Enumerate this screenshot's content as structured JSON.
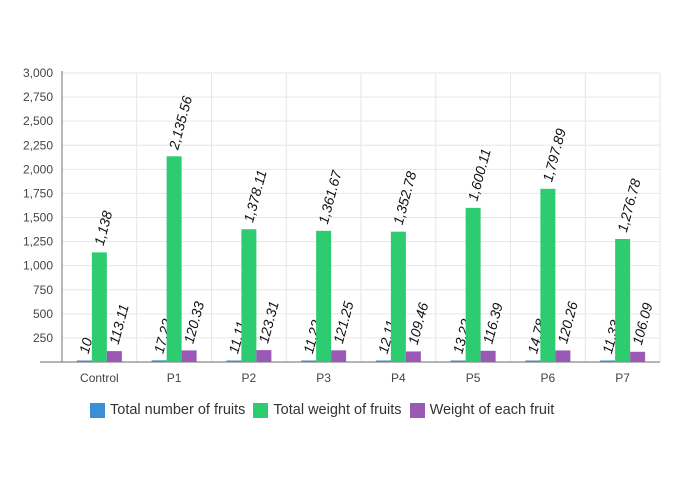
{
  "chart_data": {
    "type": "bar",
    "categories": [
      "Control",
      "P1",
      "P2",
      "P3",
      "P4",
      "P5",
      "P6",
      "P7"
    ],
    "series": [
      {
        "name": "Total number of fruits",
        "color": "#3a8fd6",
        "values": [
          10,
          17.22,
          11.11,
          11.22,
          12.11,
          13.22,
          14.78,
          11.33
        ],
        "labels": [
          "10",
          "17.22",
          "11.11",
          "11.22",
          "12.11",
          "13.22",
          "14.78",
          "11.33"
        ]
      },
      {
        "name": "Total weight of fruits",
        "color": "#2ecc71",
        "values": [
          1138,
          2135.56,
          1378.11,
          1361.67,
          1352.78,
          1600.11,
          1797.89,
          1276.78
        ],
        "labels": [
          "1,138",
          "2,135.56",
          "1,378.11",
          "1,361.67",
          "1,352.78",
          "1,600.11",
          "1,797.89",
          "1,276.78"
        ]
      },
      {
        "name": "Weight of each fruit",
        "color": "#9b59b6",
        "values": [
          113.11,
          120.33,
          123.31,
          121.25,
          109.46,
          116.39,
          120.26,
          106.09
        ],
        "labels": [
          "113.11",
          "120.33",
          "123.31",
          "121.25",
          "109.46",
          "116.39",
          "120.26",
          "106.09"
        ]
      }
    ],
    "ylim": [
      0,
      3000
    ],
    "yticks": [
      250,
      500,
      750,
      1000,
      1250,
      1500,
      1750,
      2000,
      2250,
      2500,
      2750,
      3000
    ],
    "ytick_labels": [
      "250",
      "500",
      "750",
      "1,000",
      "1,250",
      "1,500",
      "1,750",
      "2,000",
      "2,250",
      "2,500",
      "2,750",
      "3,000"
    ],
    "grid": true,
    "legend_position": "bottom"
  }
}
